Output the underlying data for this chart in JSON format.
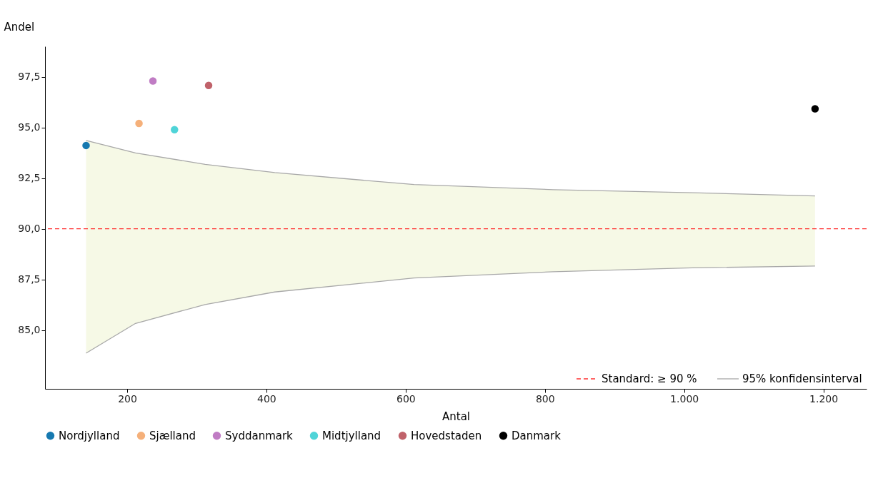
{
  "chart_data": {
    "type": "scatter",
    "xlabel": "Antal",
    "ylabel": "Andel",
    "xlim": [
      82,
      1262
    ],
    "ylim": [
      82.1,
      99.0
    ],
    "xticks": [
      200,
      400,
      600,
      800,
      {
        "value": 1000,
        "label": "1.000"
      },
      {
        "value": 1200,
        "label": "1.200"
      }
    ],
    "yticks": [
      {
        "value": 85,
        "label": "85,0"
      },
      {
        "value": 87.5,
        "label": "87,5"
      },
      {
        "value": 90,
        "label": "90,0"
      },
      {
        "value": 92.5,
        "label": "92,5"
      },
      {
        "value": 95,
        "label": "95,0"
      },
      {
        "value": 97.5,
        "label": "97,5"
      }
    ],
    "grid": false,
    "legend": "bottom",
    "marker": "circle",
    "series": [
      {
        "name": "95% konfidensinterval",
        "type": "line",
        "marker": "none",
        "line_style": "solid",
        "color": "#a8a8a8",
        "x": [
          141,
          212,
          312,
          412,
          612,
          812,
          1012,
          1188
        ],
        "values": [
          94.36,
          93.74,
          93.18,
          92.77,
          92.18,
          91.93,
          91.78,
          91.62
        ],
        "lower": [
          83.86,
          85.33,
          86.26,
          86.88,
          87.57,
          87.88,
          88.07,
          88.16
        ],
        "upper": [
          94.36,
          93.74,
          93.18,
          92.77,
          92.18,
          91.93,
          91.78,
          91.62
        ]
      },
      {
        "type": "line",
        "marker": "none",
        "line_style": "solid",
        "color": "#a8a8a8",
        "x": [
          141,
          212,
          312,
          412,
          612,
          812,
          1012,
          1188
        ],
        "values": [
          83.86,
          85.33,
          86.26,
          86.88,
          87.57,
          87.88,
          88.07,
          88.16
        ]
      },
      {
        "name": "Nordjylland",
        "color": "#1679b0",
        "x": [
          141
        ],
        "values": [
          94.11
        ]
      },
      {
        "name": "Sjælland",
        "color": "#f5b07a",
        "x": [
          217
        ],
        "values": [
          95.2
        ]
      },
      {
        "name": "Syddanmark",
        "color": "#c07cc4",
        "x": [
          237
        ],
        "values": [
          97.29
        ]
      },
      {
        "name": "Midtjylland",
        "color": "#4fd4d8",
        "x": [
          268
        ],
        "values": [
          94.89
        ]
      },
      {
        "name": "Hovedstaden",
        "color": "#c0626a",
        "x": [
          317
        ],
        "values": [
          97.07
        ]
      },
      {
        "name": "Danmark",
        "color": "#000000",
        "x": [
          1188
        ],
        "values": [
          95.92
        ]
      }
    ],
    "ref_lines": [
      {
        "axis": "y",
        "value": 90,
        "label": "Standard: ≥ 90 %",
        "color": "#ff3333",
        "line_style": "dashed"
      }
    ]
  }
}
